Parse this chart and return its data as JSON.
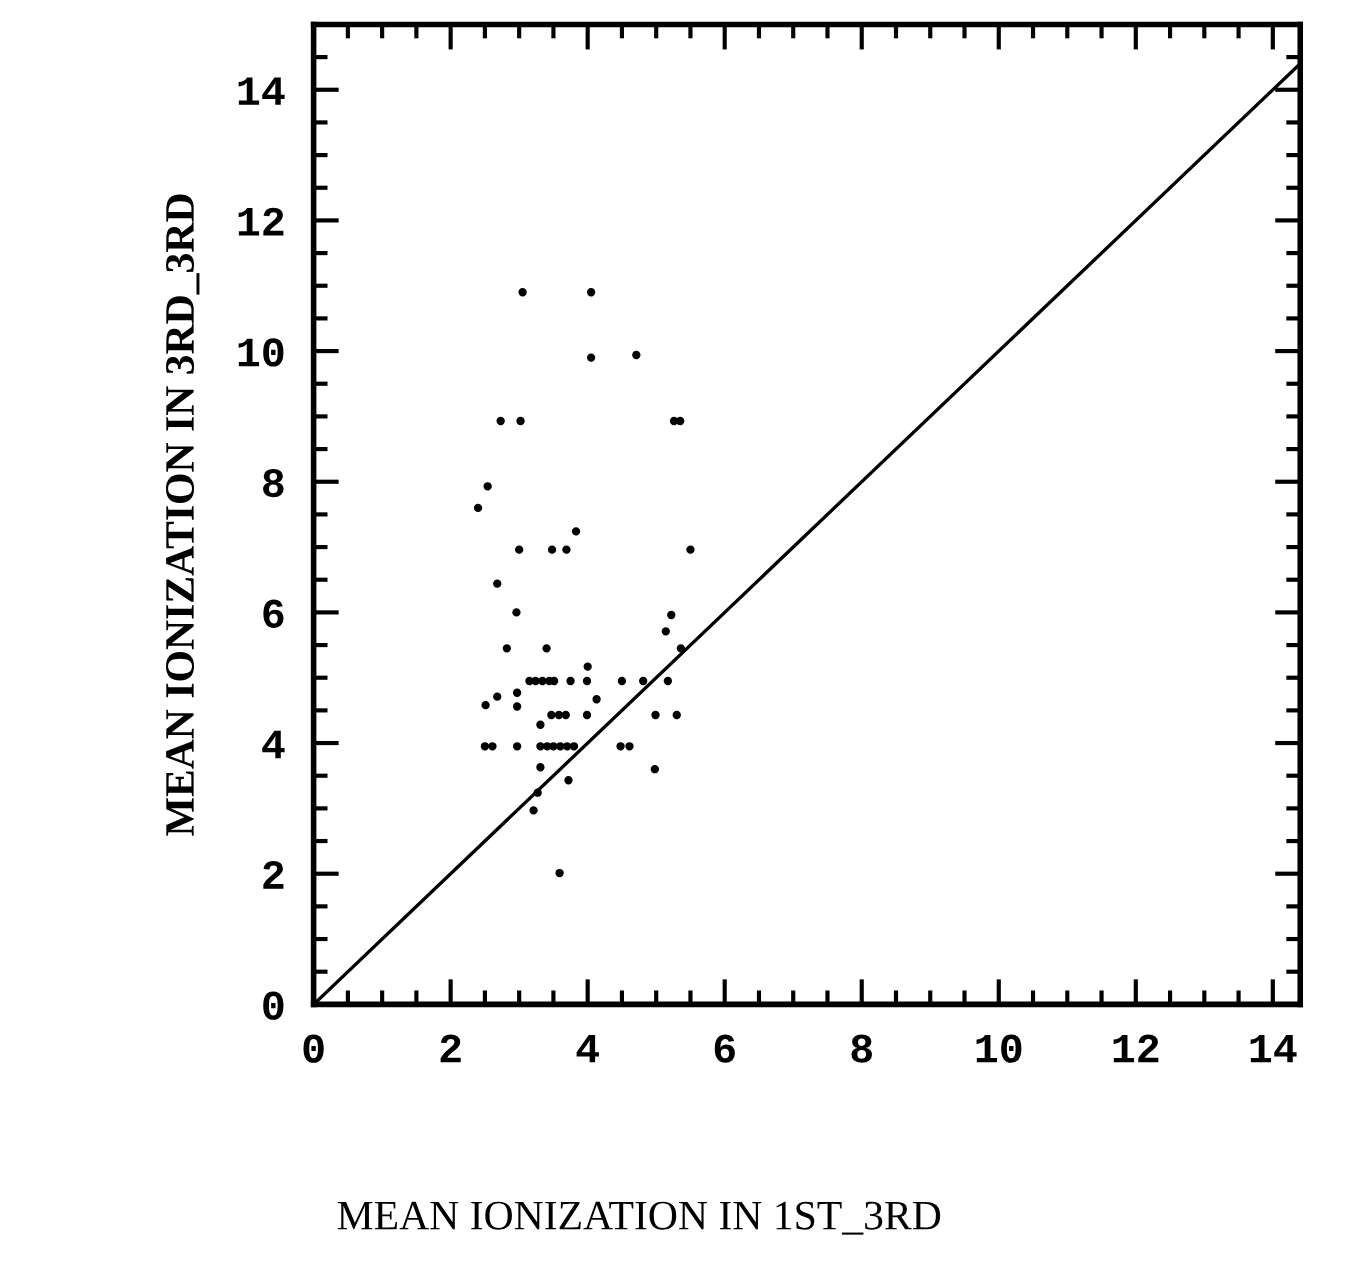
{
  "chart_data": {
    "type": "scatter",
    "xlabel": "MEAN IONIZATION IN 1ST_3RD",
    "ylabel": "MEAN IONIZATION IN 3RD_3RD",
    "xlim": [
      0,
      14.4
    ],
    "ylim": [
      0,
      15
    ],
    "xticks": [
      0,
      2,
      4,
      6,
      8,
      10,
      12,
      14
    ],
    "yticks": [
      0,
      2,
      4,
      6,
      8,
      10,
      12,
      14
    ],
    "grid": false,
    "marker": "circle",
    "series": [
      {
        "color": "#000000",
        "x": [
          3.05,
          4.05,
          4.05,
          4.71,
          2.73,
          3.02,
          5.26,
          5.35,
          2.54,
          2.4,
          3.83,
          3.0,
          3.48,
          3.69,
          5.5,
          2.68,
          2.96,
          5.22,
          5.14,
          2.82,
          3.4,
          5.36,
          4.0,
          3.15,
          3.24,
          3.34,
          3.44,
          3.51,
          3.75,
          3.99,
          4.5,
          4.81,
          5.17,
          2.97,
          2.68,
          2.51,
          2.97,
          4.13,
          3.47,
          3.58,
          3.68,
          3.99,
          4.99,
          5.3,
          3.31,
          2.5,
          2.61,
          2.97,
          3.31,
          3.41,
          3.5,
          3.6,
          3.7,
          3.8,
          4.48,
          4.61,
          3.31,
          4.98,
          3.72,
          3.27,
          3.21,
          3.59
        ],
        "values": [
          10.9,
          10.9,
          9.9,
          9.94,
          8.93,
          8.93,
          8.93,
          8.93,
          7.93,
          7.6,
          7.24,
          6.96,
          6.96,
          6.96,
          6.96,
          6.44,
          6.0,
          5.96,
          5.71,
          5.45,
          5.45,
          5.45,
          5.17,
          4.95,
          4.95,
          4.95,
          4.95,
          4.95,
          4.95,
          4.95,
          4.95,
          4.95,
          4.95,
          4.77,
          4.71,
          4.58,
          4.56,
          4.67,
          4.43,
          4.43,
          4.43,
          4.43,
          4.43,
          4.43,
          4.28,
          3.95,
          3.95,
          3.95,
          3.95,
          3.95,
          3.95,
          3.95,
          3.95,
          3.95,
          3.95,
          3.95,
          3.63,
          3.6,
          3.43,
          3.24,
          2.97,
          2.01
        ]
      },
      {
        "type": "line",
        "color": "#000000",
        "x": [
          0,
          14.4
        ],
        "values": [
          0,
          14.4
        ],
        "marker": "none",
        "line_style": "solid"
      }
    ]
  }
}
